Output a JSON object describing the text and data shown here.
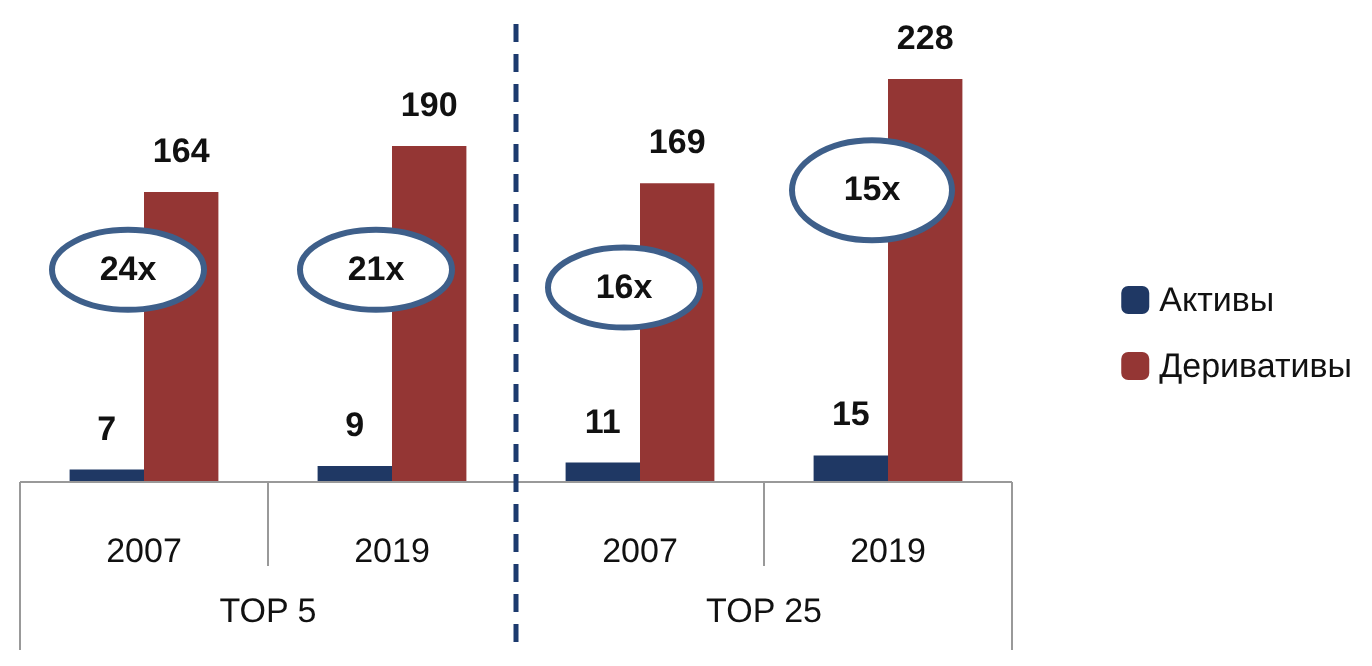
{
  "chart_data": {
    "type": "bar",
    "categories": [
      "2007",
      "2019",
      "2007",
      "2019"
    ],
    "series": [
      {
        "name": "Активы",
        "color": "#1f3864",
        "values": [
          7,
          9,
          11,
          15
        ]
      },
      {
        "name": "Деривативы",
        "color": "#943634",
        "values": [
          164,
          190,
          169,
          228
        ]
      }
    ],
    "tick_labels": "x",
    "data_labels": true,
    "legend": "right",
    "annotations": [
      "24x",
      "21x",
      "16x",
      "15x",
      "TOP 5",
      "TOP 25"
    ]
  }
}
